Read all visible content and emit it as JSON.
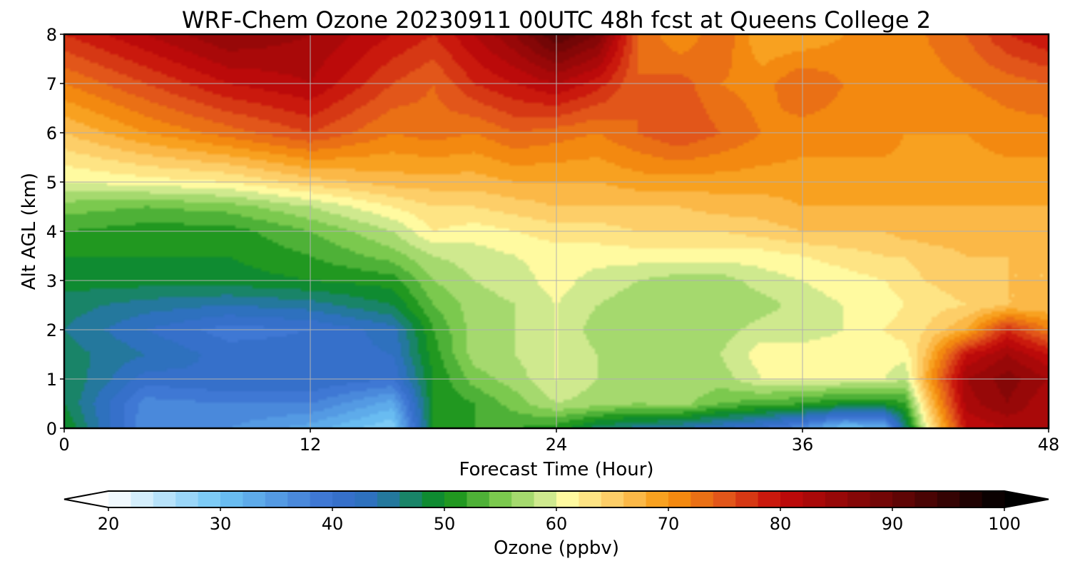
{
  "chart_data": {
    "type": "heatmap",
    "title": "WRF-Chem Ozone  20230911 00UTC 48h fcst at Queens College 2",
    "xlabel": "Forecast Time (Hour)",
    "ylabel": "Alt AGL (km)",
    "xlim": [
      0,
      48
    ],
    "ylim": [
      0,
      8
    ],
    "xticks": [
      0,
      12,
      24,
      36,
      48
    ],
    "yticks": [
      0,
      1,
      2,
      3,
      4,
      5,
      6,
      7,
      8
    ],
    "grid": true,
    "x": [
      0,
      4,
      8,
      12,
      16,
      18,
      20,
      22,
      24,
      26,
      28,
      30,
      32,
      34,
      36,
      38,
      40,
      41,
      42,
      44,
      46,
      48
    ],
    "y": [
      0,
      0.5,
      1,
      1.5,
      2,
      2.5,
      3,
      3.5,
      4,
      4.5,
      5,
      6,
      7,
      8
    ],
    "z": [
      [
        50,
        36,
        36,
        33,
        28,
        50,
        52,
        52,
        51,
        47,
        45,
        44,
        42,
        40,
        36,
        30,
        32,
        46,
        60,
        80,
        82,
        83
      ],
      [
        48,
        37,
        38,
        38,
        33,
        50,
        52,
        55,
        58,
        57,
        56,
        57,
        54,
        53,
        52,
        50,
        50,
        52,
        64,
        83,
        86,
        82
      ],
      [
        48,
        41,
        42,
        42,
        40,
        50,
        55,
        57,
        60,
        58,
        56,
        58,
        57,
        60,
        60,
        60,
        60,
        58,
        68,
        84,
        87,
        84
      ],
      [
        47,
        44,
        41,
        41,
        42,
        51,
        57,
        58,
        60,
        58,
        56,
        58,
        58,
        61,
        61,
        61,
        61,
        61,
        66,
        80,
        84,
        80
      ],
      [
        46,
        42,
        39,
        40,
        43,
        52,
        57,
        58,
        60,
        57,
        56,
        57,
        57,
        59,
        59,
        60,
        62,
        63,
        64,
        68,
        78,
        72
      ],
      [
        47,
        45,
        44,
        45,
        48,
        54,
        57,
        58,
        60,
        58,
        57,
        57,
        56,
        57,
        59,
        60,
        61,
        62,
        63,
        64,
        66,
        66
      ],
      [
        49,
        49,
        49,
        50,
        51,
        56,
        58,
        59,
        61,
        59,
        58,
        57,
        57,
        59,
        60,
        61,
        62,
        63,
        64,
        65,
        66,
        66
      ],
      [
        50,
        50,
        50,
        52,
        55,
        58,
        59,
        60,
        61,
        61,
        61,
        61,
        61,
        61,
        62,
        63,
        64,
        64,
        65,
        66,
        66,
        66
      ],
      [
        52,
        51,
        51,
        54,
        58,
        62,
        61,
        62,
        63,
        63,
        64,
        64,
        64,
        65,
        66,
        66,
        66,
        67,
        67,
        67,
        67,
        67
      ],
      [
        55,
        54,
        55,
        58,
        62,
        64,
        64,
        65,
        66,
        66,
        66,
        66,
        67,
        67,
        68,
        68,
        68,
        68,
        68,
        68,
        68,
        68
      ],
      [
        60,
        61,
        62,
        65,
        67,
        67,
        67,
        68,
        68,
        68,
        69,
        69,
        69,
        69,
        69,
        69,
        69,
        69,
        69,
        69,
        69,
        69
      ],
      [
        66,
        70,
        73,
        76,
        72,
        73,
        72,
        74,
        73,
        72,
        74,
        76,
        74,
        72,
        71,
        71,
        71,
        70,
        70,
        70,
        71,
        71
      ],
      [
        72,
        76,
        80,
        82,
        76,
        74,
        78,
        80,
        82,
        79,
        74,
        75,
        72,
        71,
        74,
        72,
        71,
        71,
        71,
        72,
        73,
        74
      ],
      [
        78,
        82,
        86,
        84,
        80,
        78,
        82,
        86,
        92,
        88,
        74,
        70,
        74,
        68,
        68,
        70,
        72,
        72,
        72,
        74,
        78,
        80
      ]
    ],
    "colorbar": {
      "label": "Ozone  (ppbv)",
      "min": 20,
      "max": 100,
      "step": 2,
      "ticks": [
        20,
        30,
        40,
        50,
        60,
        70,
        80,
        90,
        100
      ],
      "extend": "both",
      "anchors": [
        [
          20,
          "#ffffff"
        ],
        [
          30,
          "#6ec5f5"
        ],
        [
          40,
          "#3a6fd0"
        ],
        [
          44,
          "#2a72b8"
        ],
        [
          48,
          "#138a4d"
        ],
        [
          50,
          "#0a8c14"
        ],
        [
          55,
          "#7bc94e"
        ],
        [
          59,
          "#cfe98e"
        ],
        [
          61,
          "#fffaa0"
        ],
        [
          66,
          "#fcc35a"
        ],
        [
          70,
          "#f7960d"
        ],
        [
          75,
          "#e2561a"
        ],
        [
          80,
          "#c40a0a"
        ],
        [
          90,
          "#6a0606"
        ],
        [
          100,
          "#000000"
        ]
      ]
    }
  }
}
